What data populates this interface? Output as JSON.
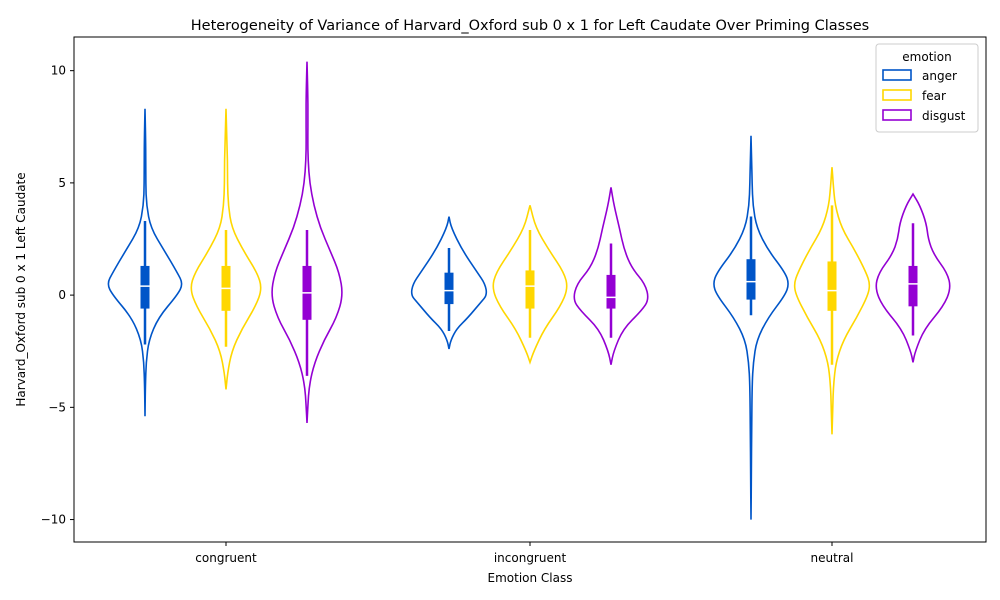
{
  "chart_data": {
    "type": "violin",
    "title": "Heterogeneity of Variance of Harvard_Oxford sub 0 x 1 for Left Caudate Over Priming Classes",
    "xlabel": "Emotion Class",
    "ylabel": "Harvard_Oxford sub 0 x 1 Left Caudate",
    "categories": [
      "congruent",
      "incongruent",
      "neutral"
    ],
    "ylim": [
      -11.0,
      11.5
    ],
    "yticks": [
      -10,
      -5,
      0,
      5,
      10
    ],
    "ytick_labels": [
      "−10",
      "−5",
      "0",
      "5",
      "10"
    ],
    "grid": false,
    "legend": {
      "title": "emotion",
      "position": "top-right",
      "entries": [
        "anger",
        "fear",
        "disgust"
      ]
    },
    "series": [
      {
        "name": "anger",
        "color": "#0055c8",
        "violins": [
          {
            "category": "congruent",
            "min": -5.4,
            "max": 8.3,
            "q1": -0.6,
            "median": 0.4,
            "q3": 1.3,
            "whisker_low": -2.2,
            "whisker_high": 3.3,
            "density": [
              [
                -5.4,
                0
              ],
              [
                -4,
                0.01
              ],
              [
                -3,
                0.03
              ],
              [
                -2,
                0.1
              ],
              [
                -1,
                0.35
              ],
              [
                0,
                0.85
              ],
              [
                0.5,
                1.0
              ],
              [
                1,
                0.85
              ],
              [
                2,
                0.5
              ],
              [
                3,
                0.15
              ],
              [
                4,
                0.04
              ],
              [
                5,
                0.02
              ],
              [
                6,
                0.02
              ],
              [
                7,
                0.015
              ],
              [
                8.3,
                0
              ]
            ]
          },
          {
            "category": "incongruent",
            "min": -2.4,
            "max": 3.5,
            "q1": -0.4,
            "median": 0.2,
            "q3": 1.0,
            "whisker_low": -1.6,
            "whisker_high": 2.1,
            "density": [
              [
                -2.4,
                0
              ],
              [
                -2,
                0.05
              ],
              [
                -1.5,
                0.2
              ],
              [
                -1,
                0.5
              ],
              [
                -0.3,
                0.85
              ],
              [
                0,
                1.0
              ],
              [
                0.5,
                0.95
              ],
              [
                1,
                0.75
              ],
              [
                2,
                0.35
              ],
              [
                3,
                0.06
              ],
              [
                3.5,
                0
              ]
            ]
          },
          {
            "category": "neutral",
            "min": -10.0,
            "max": 7.1,
            "q1": -0.2,
            "median": 0.6,
            "q3": 1.6,
            "whisker_low": -0.9,
            "whisker_high": 3.5,
            "density": [
              [
                -10,
                0
              ],
              [
                -8,
                0.01
              ],
              [
                -6,
                0.015
              ],
              [
                -4,
                0.03
              ],
              [
                -3,
                0.06
              ],
              [
                -2,
                0.15
              ],
              [
                -1,
                0.45
              ],
              [
                0,
                0.9
              ],
              [
                0.5,
                1.0
              ],
              [
                1,
                0.9
              ],
              [
                2,
                0.45
              ],
              [
                3,
                0.15
              ],
              [
                4,
                0.05
              ],
              [
                5,
                0.03
              ],
              [
                6,
                0.015
              ],
              [
                7.1,
                0
              ]
            ]
          }
        ]
      },
      {
        "name": "fear",
        "color": "#ffd700",
        "violins": [
          {
            "category": "congruent",
            "min": -4.2,
            "max": 8.3,
            "q1": -0.7,
            "median": 0.3,
            "q3": 1.3,
            "whisker_low": -2.3,
            "whisker_high": 2.9,
            "density": [
              [
                -4.2,
                0
              ],
              [
                -3.5,
                0.04
              ],
              [
                -2.5,
                0.15
              ],
              [
                -1.5,
                0.42
              ],
              [
                -0.5,
                0.78
              ],
              [
                0.3,
                0.95
              ],
              [
                1,
                0.82
              ],
              [
                2,
                0.45
              ],
              [
                3,
                0.15
              ],
              [
                4,
                0.06
              ],
              [
                5,
                0.04
              ],
              [
                6,
                0.04
              ],
              [
                7,
                0.02
              ],
              [
                8.3,
                0
              ]
            ]
          },
          {
            "category": "incongruent",
            "min": -3.0,
            "max": 4.0,
            "q1": -0.6,
            "median": 0.4,
            "q3": 1.1,
            "whisker_low": -1.9,
            "whisker_high": 2.9,
            "density": [
              [
                -3,
                0
              ],
              [
                -2.5,
                0.1
              ],
              [
                -1.5,
                0.38
              ],
              [
                -0.5,
                0.8
              ],
              [
                0.3,
                1.0
              ],
              [
                1,
                0.9
              ],
              [
                2,
                0.5
              ],
              [
                3,
                0.15
              ],
              [
                4,
                0
              ]
            ]
          },
          {
            "category": "neutral",
            "min": -6.2,
            "max": 5.7,
            "q1": -0.7,
            "median": 0.2,
            "q3": 1.5,
            "whisker_low": -3.1,
            "whisker_high": 4.0,
            "density": [
              [
                -6.2,
                0
              ],
              [
                -5,
                0.02
              ],
              [
                -4,
                0.04
              ],
              [
                -3,
                0.1
              ],
              [
                -2,
                0.3
              ],
              [
                -1,
                0.65
              ],
              [
                0,
                0.95
              ],
              [
                0.5,
                1.0
              ],
              [
                1,
                0.9
              ],
              [
                2,
                0.6
              ],
              [
                3,
                0.25
              ],
              [
                4,
                0.08
              ],
              [
                5,
                0.03
              ],
              [
                5.7,
                0
              ]
            ]
          }
        ]
      },
      {
        "name": "disgust",
        "color": "#9400d3",
        "violins": [
          {
            "category": "congruent",
            "min": -5.7,
            "max": 10.4,
            "q1": -1.1,
            "median": 0.1,
            "q3": 1.3,
            "whisker_low": -3.6,
            "whisker_high": 2.9,
            "density": [
              [
                -5.7,
                0
              ],
              [
                -5,
                0.02
              ],
              [
                -4,
                0.06
              ],
              [
                -3,
                0.2
              ],
              [
                -2,
                0.45
              ],
              [
                -1,
                0.78
              ],
              [
                0,
                0.95
              ],
              [
                1,
                0.85
              ],
              [
                2,
                0.6
              ],
              [
                3,
                0.35
              ],
              [
                4,
                0.18
              ],
              [
                5,
                0.07
              ],
              [
                6,
                0.03
              ],
              [
                7,
                0.02
              ],
              [
                8,
                0.025
              ],
              [
                9,
                0.02
              ],
              [
                10.4,
                0
              ]
            ]
          },
          {
            "category": "incongruent",
            "min": -3.1,
            "max": 4.8,
            "q1": -0.6,
            "median": -0.1,
            "q3": 0.9,
            "whisker_low": -1.9,
            "whisker_high": 2.3,
            "density": [
              [
                -3.1,
                0
              ],
              [
                -2.5,
                0.07
              ],
              [
                -1.5,
                0.32
              ],
              [
                -0.7,
                0.8
              ],
              [
                -0.2,
                1.0
              ],
              [
                0.5,
                0.9
              ],
              [
                1.2,
                0.55
              ],
              [
                2,
                0.35
              ],
              [
                3,
                0.22
              ],
              [
                4,
                0.08
              ],
              [
                4.8,
                0
              ]
            ]
          },
          {
            "category": "neutral",
            "min": -3.0,
            "max": 4.5,
            "q1": -0.5,
            "median": 0.5,
            "q3": 1.3,
            "whisker_low": -1.8,
            "whisker_high": 3.2,
            "density": [
              [
                -3,
                0
              ],
              [
                -2.5,
                0.06
              ],
              [
                -1.5,
                0.3
              ],
              [
                -0.5,
                0.8
              ],
              [
                0.3,
                1.0
              ],
              [
                1,
                0.9
              ],
              [
                1.8,
                0.55
              ],
              [
                2.5,
                0.4
              ],
              [
                3.2,
                0.35
              ],
              [
                4,
                0.18
              ],
              [
                4.5,
                0
              ]
            ]
          }
        ]
      }
    ]
  }
}
